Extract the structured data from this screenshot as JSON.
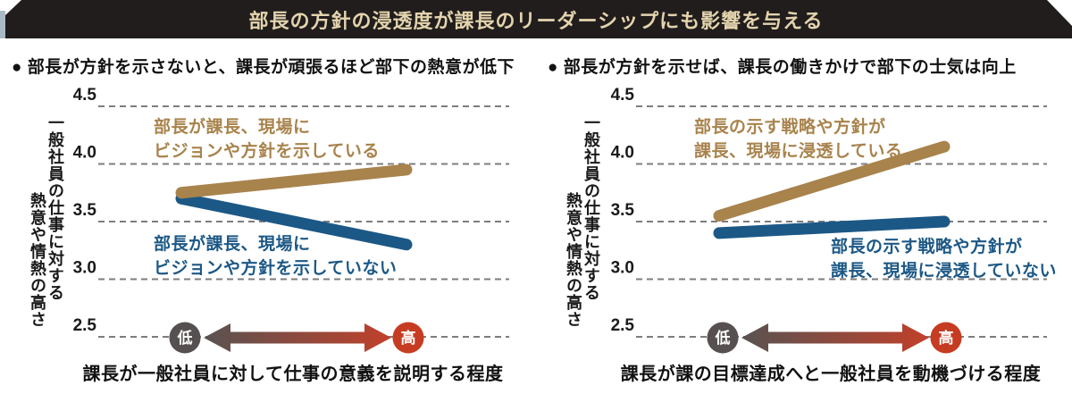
{
  "banner": {
    "title": "部長の方針の浸透度が課長のリーダーシップにも影響を与える",
    "bg_color": "#211d1d",
    "text_color": "#e3d4ae"
  },
  "colors": {
    "brown": "#a8834c",
    "blue": "#1c5886",
    "grid": "#7d7d7d",
    "arrow_gradient_left": "#585352",
    "arrow_gradient_right": "#c2402a",
    "circle_low_bg": "#575050",
    "circle_high_bg": "#c63c22",
    "circle_text": "#ffffff"
  },
  "chart_data": [
    {
      "type": "line",
      "title": "● 部長が方針を示さないと、課長が頑張るほど部下の熱意が低下",
      "xlabel": "課長が一般社員に対して仕事の意義を説明する程度",
      "ylabel": "一般社員の仕事に対する熱意や情熱の高さ",
      "ylabel_lines": [
        "一般社員の仕事に対する",
        "熱意や情熱の高さ"
      ],
      "yticks": [
        "4.5",
        "4.0",
        "3.5",
        "3.0",
        "2.5"
      ],
      "ylim": [
        2.35,
        4.7
      ],
      "grid": "dashed",
      "legend_position": "inline-labels",
      "x_axis": {
        "low": "低",
        "high": "高"
      },
      "categories": [
        "低",
        "高"
      ],
      "series": [
        {
          "name": "部長が課長、現場にビジョンや方針を示している",
          "label_lines": [
            "部長が課長、現場に",
            "ビジョンや方針を示している"
          ],
          "color": "#a8834c",
          "values": [
            3.75,
            3.95
          ]
        },
        {
          "name": "部長が課長、現場にビジョンや方針を示していない",
          "label_lines": [
            "部長が課長、現場に",
            "ビジョンや方針を示していない"
          ],
          "color": "#1c5886",
          "values": [
            3.7,
            3.3
          ]
        }
      ]
    },
    {
      "type": "line",
      "title": "● 部長が方針を示せば、課長の働きかけで部下の士気は向上",
      "xlabel": "課長が課の目標達成へと一般社員を動機づける程度",
      "ylabel": "一般社員の仕事に対する熱意や情熱の高さ",
      "ylabel_lines": [
        "一般社員の仕事に対する",
        "熱意や情熱の高さ"
      ],
      "yticks": [
        "4.5",
        "4.0",
        "3.5",
        "3.0",
        "2.5"
      ],
      "ylim": [
        2.35,
        4.7
      ],
      "grid": "dashed",
      "legend_position": "inline-labels",
      "x_axis": {
        "low": "低",
        "high": "高"
      },
      "categories": [
        "低",
        "高"
      ],
      "series": [
        {
          "name": "部長の示す戦略や方針が課長、現場に浸透している",
          "label_lines": [
            "部長の示す戦略や方針が",
            "課長、現場に浸透している"
          ],
          "color": "#a8834c",
          "values": [
            3.55,
            4.15
          ]
        },
        {
          "name": "部長の示す戦略や方針が課長、現場に浸透していない",
          "label_lines": [
            "部長の示す戦略や方針が",
            "課長、現場に浸透していない"
          ],
          "color": "#1c5886",
          "values": [
            3.4,
            3.5
          ]
        }
      ]
    }
  ]
}
